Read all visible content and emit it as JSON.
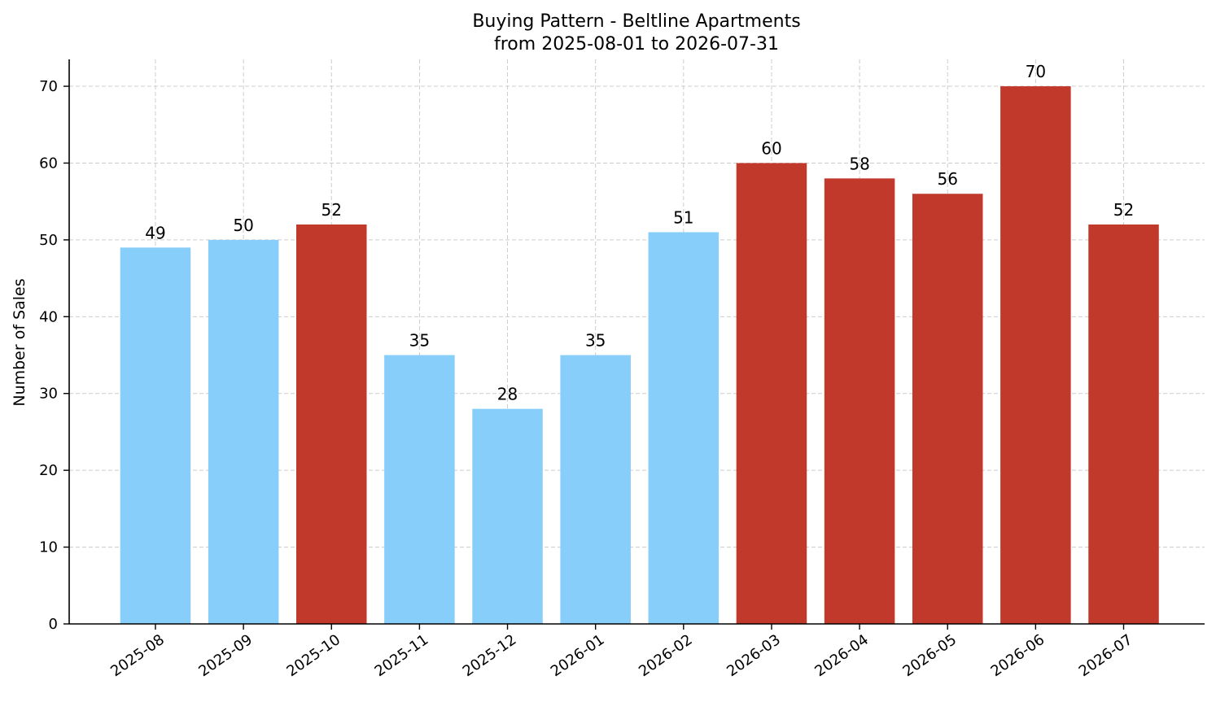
{
  "chart_data": {
    "type": "bar",
    "title_line1": "Buying Pattern - Beltline Apartments",
    "title_line2": "from 2025-08-01 to 2026-07-31",
    "xlabel": "",
    "ylabel": "Number of Sales",
    "ylim": [
      0,
      73.5
    ],
    "yticks": [
      0,
      10,
      20,
      30,
      40,
      50,
      60,
      70
    ],
    "grid": true,
    "categories": [
      "2025-08",
      "2025-09",
      "2025-10",
      "2025-11",
      "2025-12",
      "2026-01",
      "2026-02",
      "2026-03",
      "2026-04",
      "2026-05",
      "2026-06",
      "2026-07"
    ],
    "values": [
      49,
      50,
      52,
      35,
      28,
      35,
      51,
      60,
      58,
      56,
      70,
      52
    ],
    "bar_colors": [
      "#87CEFA",
      "#87CEFA",
      "#C0392B",
      "#87CEFA",
      "#87CEFA",
      "#87CEFA",
      "#87CEFA",
      "#C0392B",
      "#C0392B",
      "#C0392B",
      "#C0392B",
      "#C0392B"
    ],
    "data_labels": [
      "49",
      "50",
      "52",
      "35",
      "28",
      "35",
      "51",
      "60",
      "58",
      "56",
      "70",
      "52"
    ]
  }
}
